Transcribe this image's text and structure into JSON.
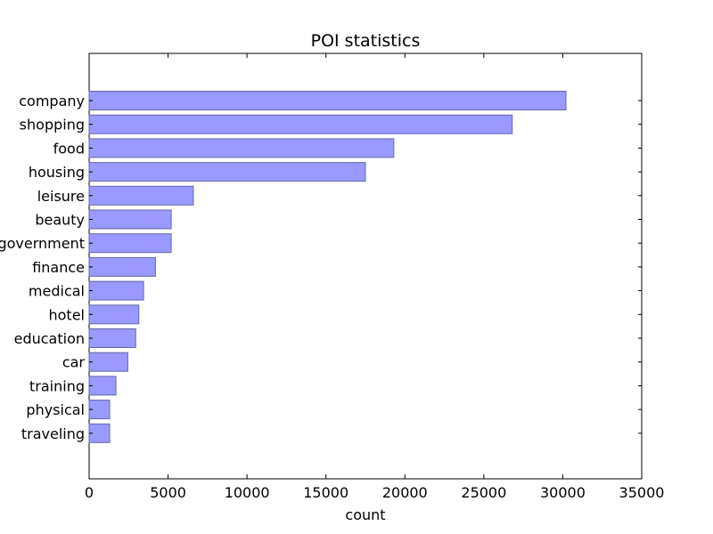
{
  "chart_data": {
    "type": "bar",
    "orientation": "horizontal",
    "title": "POI statistics",
    "xlabel": "count",
    "ylabel": "",
    "xlim": [
      0,
      35000
    ],
    "x_ticks": [
      0,
      5000,
      10000,
      15000,
      20000,
      25000,
      30000,
      35000
    ],
    "x_tick_labels": [
      "0",
      "5000",
      "10000",
      "15000",
      "20000",
      "25000",
      "30000",
      "35000"
    ],
    "categories": [
      "company",
      "shopping",
      "food",
      "housing",
      "leisure",
      "beauty",
      "government",
      "finance",
      "medical",
      "hotel",
      "education",
      "car",
      "training",
      "physical",
      "traveling"
    ],
    "values": [
      30200,
      26800,
      19300,
      17500,
      6600,
      5200,
      5200,
      4200,
      3450,
      3150,
      2950,
      2450,
      1700,
      1300,
      1300
    ],
    "bar_color": "#9999ff",
    "bar_edge_color": "#6666aa",
    "grid": false,
    "legend": "none"
  }
}
